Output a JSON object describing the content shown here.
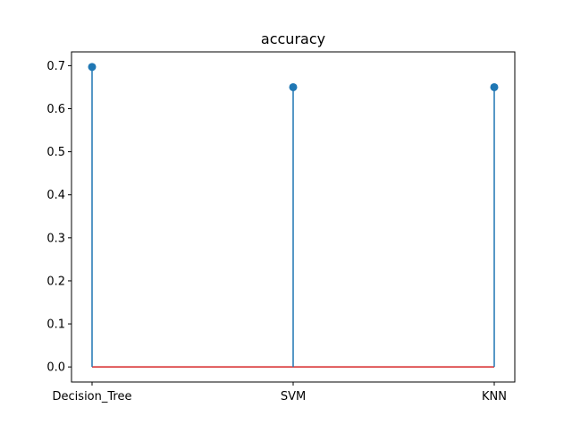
{
  "chart_data": {
    "type": "stem",
    "title": "accuracy",
    "xlabel": "",
    "ylabel": "",
    "categories": [
      "Decision_Tree",
      "SVM",
      "KNN"
    ],
    "values": [
      0.697,
      0.65,
      0.65
    ],
    "baseline": 0.0,
    "ylim": [
      -0.035,
      0.732
    ],
    "yticks": [
      0.0,
      0.1,
      0.2,
      0.3,
      0.4,
      0.5,
      0.6,
      0.7
    ],
    "ytick_labels": [
      "0.0",
      "0.1",
      "0.2",
      "0.3",
      "0.4",
      "0.5",
      "0.6",
      "0.7"
    ],
    "grid": false,
    "colors": {
      "stem": "#1f77b4",
      "marker": "#1f77b4",
      "baseline": "#d62728",
      "axes": "#000000"
    }
  }
}
